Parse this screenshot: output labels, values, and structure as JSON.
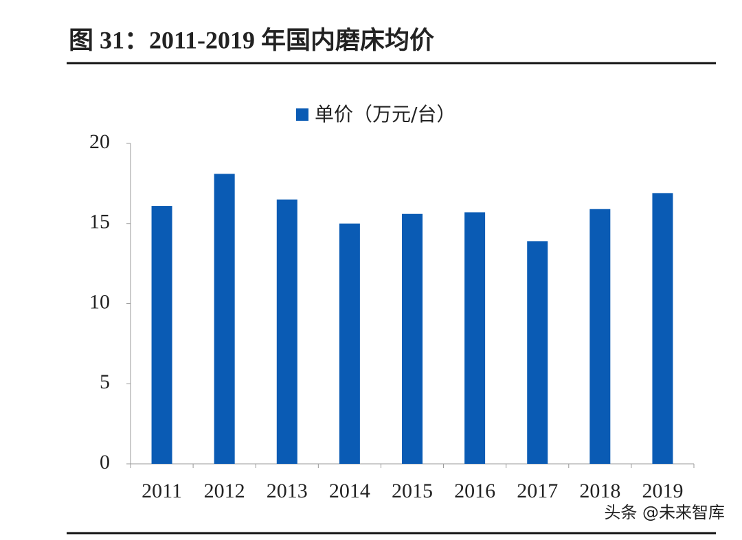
{
  "chart_data": {
    "type": "bar",
    "title": "图 31：2011-2019 年国内磨床均价",
    "categories": [
      "2011",
      "2012",
      "2013",
      "2014",
      "2015",
      "2016",
      "2017",
      "2018",
      "2019"
    ],
    "series": [
      {
        "name": "单价（万元/台）",
        "color": "#0a5bb4",
        "values": [
          16.1,
          18.1,
          16.5,
          15.0,
          15.6,
          15.7,
          13.9,
          15.9,
          16.9
        ]
      }
    ],
    "ylim": [
      0,
      20
    ],
    "yticks": [
      0,
      5,
      10,
      15,
      20
    ],
    "grid": false,
    "watermark": "头条 @未来智库"
  }
}
